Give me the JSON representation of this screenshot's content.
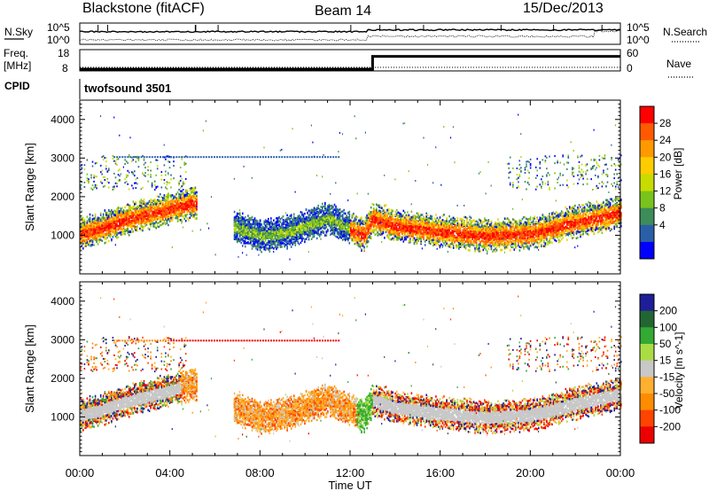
{
  "header": {
    "station": "Blackstone (fitACF)",
    "beam": "Beam 14",
    "date": "15/Dec/2013"
  },
  "panels": {
    "nsky": {
      "label": "N.Sky",
      "ticks_left": [
        "10^5",
        "10^0"
      ],
      "right_label": "N.Search",
      "ticks_right": [
        "10^5",
        "10^0"
      ]
    },
    "freq": {
      "label_line1": "Freq.",
      "label_line2": "[MHz]",
      "ticks_left": [
        "18",
        "8"
      ],
      "right_label": "Nave",
      "ticks_right": [
        "60",
        "0"
      ]
    },
    "cpid": {
      "label": "CPID",
      "value": "twofsound 3501"
    }
  },
  "power_panel": {
    "ylabel": "Slant Range [km]",
    "colorbar_label": "Power [dB]",
    "colorbar_ticks": [
      "28",
      "24",
      "20",
      "16",
      "12",
      "8",
      "4"
    ],
    "colors": [
      "#ff0000",
      "#ff5a00",
      "#ff9900",
      "#ffcc00",
      "#c8dc00",
      "#7ac31c",
      "#3d8c5a",
      "#2a5fa8",
      "#0000ff"
    ]
  },
  "velocity_panel": {
    "ylabel": "Slant Range [km]",
    "colorbar_label": "Velocity [m s^-1]",
    "colorbar_ticks": [
      "200",
      "100",
      "50",
      "15",
      "-15",
      "-50",
      "-100",
      "-200"
    ],
    "colors": [
      "#1e1e99",
      "#226633",
      "#33aa33",
      "#aadd44",
      "#c8c8c8",
      "#ffb030",
      "#ff8c00",
      "#ff4400",
      "#ee0000"
    ]
  },
  "xaxis": {
    "label": "Time UT",
    "ticks": [
      "00:00",
      "04:00",
      "08:00",
      "12:00",
      "16:00",
      "20:00",
      "00:00"
    ]
  },
  "chart_data": {
    "type": "heatmap",
    "x_unit": "hours UT",
    "xlim": [
      0,
      24
    ],
    "ylim": [
      0,
      4500
    ],
    "yticks": [
      1000,
      2000,
      3000,
      4000
    ],
    "xticks_hours": [
      0,
      4,
      8,
      12,
      16,
      20,
      24
    ],
    "freq_mhz": {
      "before_13h": 8,
      "after_13h": 16
    },
    "power_bands": [
      {
        "t": 0,
        "range": 1050
      },
      {
        "t": 1,
        "range": 1200
      },
      {
        "t": 2,
        "range": 1400
      },
      {
        "t": 3,
        "range": 1550
      },
      {
        "t": 4,
        "range": 1700
      },
      {
        "t": 5,
        "range": 1850
      },
      {
        "t": 7,
        "range": 1200
      },
      {
        "t": 8,
        "range": 1000
      },
      {
        "t": 9,
        "range": 1050
      },
      {
        "t": 10,
        "range": 1250
      },
      {
        "t": 11,
        "range": 1450
      },
      {
        "t": 12.6,
        "range": 1000
      },
      {
        "t": 13,
        "range": 1450
      },
      {
        "t": 14,
        "range": 1250
      },
      {
        "t": 16,
        "range": 1100
      },
      {
        "t": 18,
        "range": 1000
      },
      {
        "t": 20,
        "range": 1050
      },
      {
        "t": 22,
        "range": 1350
      },
      {
        "t": 24,
        "range": 1600
      }
    ]
  }
}
